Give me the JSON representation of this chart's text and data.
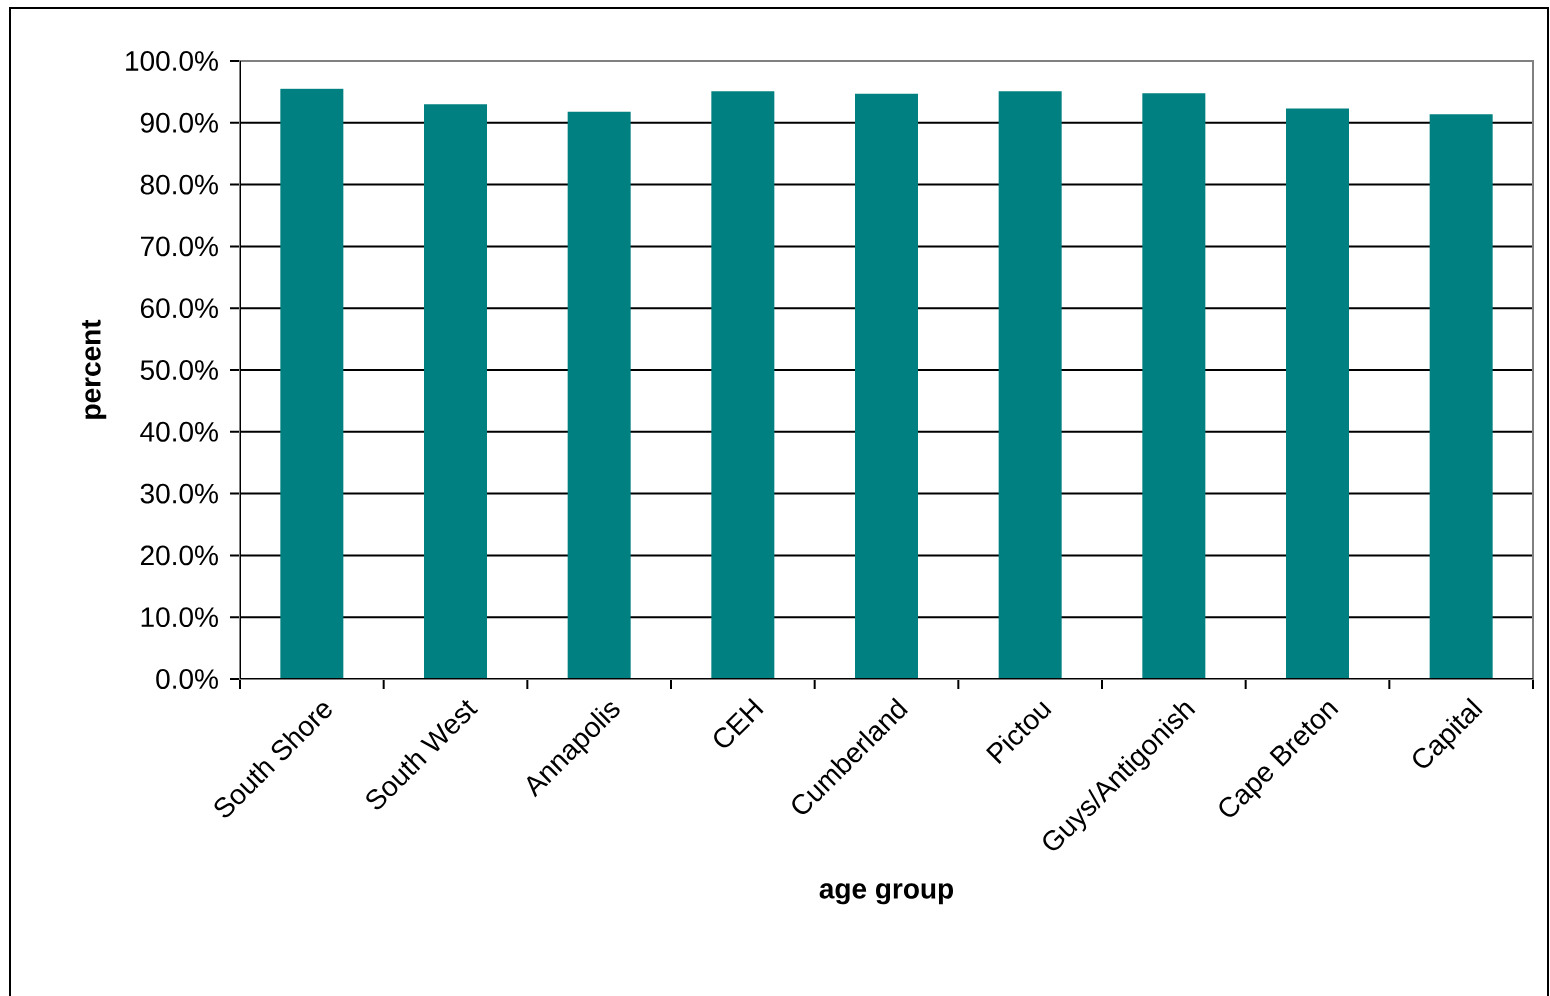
{
  "chart_data": {
    "type": "bar",
    "xlabel": "age group",
    "ylabel": "percent",
    "categories": [
      "South Shore",
      "South West",
      "Annapolis",
      "CEH",
      "Cumberland",
      "Pictou",
      "Guys/Antigonish",
      "Cape Breton",
      "Capital"
    ],
    "values": [
      95.5,
      93.0,
      91.8,
      95.1,
      94.7,
      95.1,
      94.8,
      92.3,
      91.4
    ],
    "color": "#008080",
    "ylim": [
      0,
      100
    ],
    "yticks": [
      {
        "value": 0,
        "label": "0.0%"
      },
      {
        "value": 10,
        "label": "10.0%"
      },
      {
        "value": 20,
        "label": "20.0%"
      },
      {
        "value": 30,
        "label": "30.0%"
      },
      {
        "value": 40,
        "label": "40.0%"
      },
      {
        "value": 50,
        "label": "50.0%"
      },
      {
        "value": 60,
        "label": "60.0%"
      },
      {
        "value": 70,
        "label": "70.0%"
      },
      {
        "value": 80,
        "label": "80.0%"
      },
      {
        "value": 90,
        "label": "90.0%"
      },
      {
        "value": 100,
        "label": "100.0%"
      }
    ],
    "grid": "y"
  }
}
